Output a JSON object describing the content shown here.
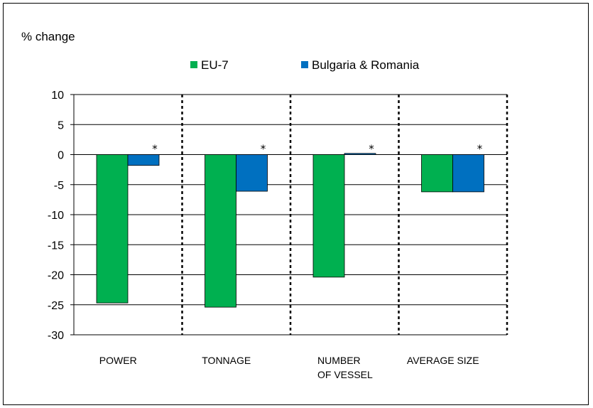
{
  "chart_data": {
    "type": "bar",
    "title": "",
    "ylabel": "% change",
    "xlabel": "",
    "categories": [
      [
        "POWER"
      ],
      [
        "TONNAGE"
      ],
      [
        "NUMBER",
        "OF VESSEL"
      ],
      [
        "AVERAGE SIZE"
      ]
    ],
    "series": [
      {
        "name": "EU-7",
        "color": "#00b050",
        "values": [
          -24.7,
          -25.4,
          -20.4,
          -6.2
        ]
      },
      {
        "name": "Bulgaria & Romania",
        "color": "#0070c0",
        "values": [
          -1.8,
          -6.1,
          0.2,
          -6.2
        ]
      }
    ],
    "ylim": [
      -30,
      10
    ],
    "yticks": [
      10,
      5,
      0,
      -5,
      -10,
      -15,
      -20,
      -25,
      -30
    ],
    "annotations": [
      "*",
      "*",
      "*",
      "*"
    ],
    "grid": true,
    "legend_position": "top-center"
  }
}
